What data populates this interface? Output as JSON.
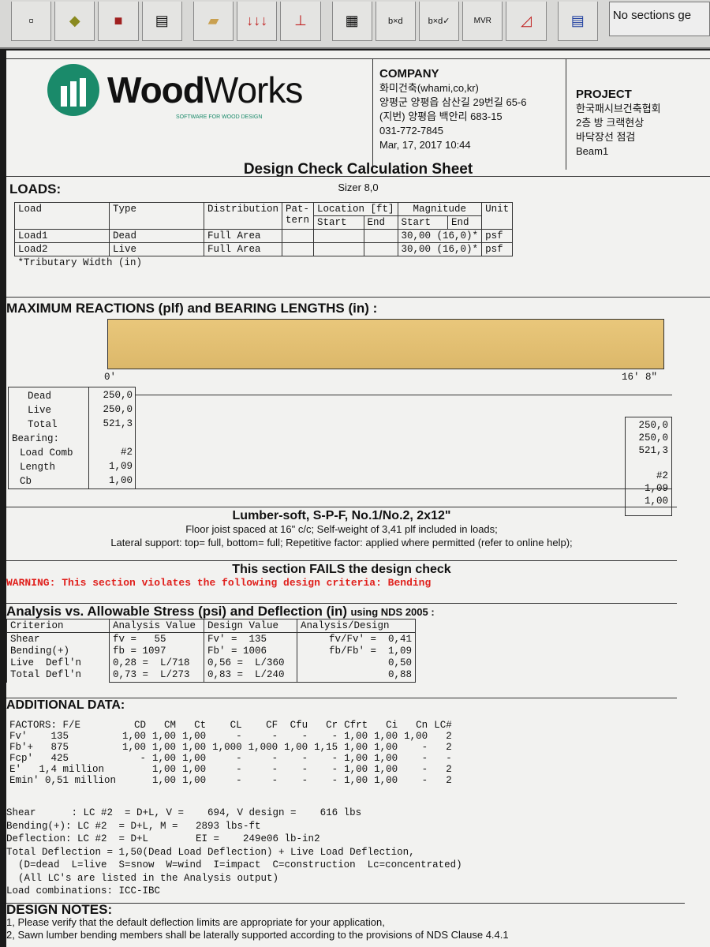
{
  "toolbar": {
    "icons": [
      "new-icon",
      "open-icon",
      "save-icon",
      "print-icon",
      "beam-icon",
      "loads-icon",
      "support-icon",
      "calculator-icon",
      "design-report-icon",
      "design-check-icon",
      "mvr-diagram-icon",
      "deflection-diagram-icon",
      "form-icon"
    ],
    "status": "No sections ge"
  },
  "header": {
    "logo": "WoodWorks",
    "logo_sub": "SOFTWARE FOR WOOD DESIGN",
    "company": {
      "label": "COMPANY",
      "lines": [
        "화미건축(whami,co,kr)",
        "양평군 양평읍 삼산길 29번길 65-6",
        "(지번) 양평읍 백안리 683-15",
        "031-772-7845",
        "Mar, 17, 2017 10:44"
      ]
    },
    "project": {
      "label": "PROJECT",
      "lines": [
        "한국패시브건축협회",
        "2층 방 크랙현상",
        "바닥장선 점검",
        "Beam1"
      ]
    },
    "title": "Design Check Calculation Sheet",
    "sizer": "Sizer 8,0"
  },
  "loads": {
    "heading": "LOADS:",
    "headers": [
      "Load",
      "Type",
      "Distribution",
      "Pat-tern",
      "Location [ft]",
      "Start",
      "End",
      "Magnitude",
      "Start",
      "End",
      "Unit"
    ],
    "rows": [
      {
        "load": "Load1",
        "type": "Dead",
        "dist": "Full Area",
        "mag": "30,00 (16,0)*",
        "unit": "psf"
      },
      {
        "load": "Load2",
        "type": "Live",
        "dist": "Full Area",
        "mag": "30,00 (16,0)*",
        "unit": "psf"
      }
    ],
    "footnote": "*Tributary Width (in)"
  },
  "reactions": {
    "heading": "MAXIMUM REACTIONS (plf) and BEARING LENGTHS (in) :",
    "left_label": "0'",
    "right_label": "16' 8\"",
    "labels": [
      "Dead",
      "Live",
      "Total",
      "Bearing:",
      "Load Comb",
      "Length",
      "Cb"
    ],
    "left": {
      "dead": "250,0",
      "live": "250,0",
      "total": "521,3",
      "comb": "#2",
      "length": "1,09",
      "cb": "1,00"
    },
    "right": {
      "dead": "250,0",
      "live": "250,0",
      "total": "521,3",
      "comb": "#2",
      "length": "1,09",
      "cb": "1,00"
    }
  },
  "lumber": {
    "title": "Lumber-soft, S-P-F, No.1/No.2, 2x12\"",
    "line1": "Floor joist spaced at 16\" c/c; Self-weight of 3,41 plf included in loads;",
    "line2": "Lateral support: top= full, bottom= full; Repetitive factor: applied where permitted (refer to online help);"
  },
  "status": {
    "fail": "This section FAILS the design check",
    "warning": "WARNING: This section violates the following design criteria: Bending",
    "warning_color": "#e0201c"
  },
  "analysis": {
    "heading": "Analysis vs. Allowable Stress (psi) and Deflection (in)",
    "using": "using NDS 2005 :",
    "headers": [
      "Criterion",
      "Analysis Value",
      "Design  Value",
      "Analysis/Design"
    ],
    "rows": [
      [
        "Shear",
        "fv =   55",
        "Fv' =  135",
        "fv/Fv' =  0,41"
      ],
      [
        "Bending(+)",
        "fb = 1097",
        "Fb' = 1006",
        "fb/Fb' =  1,09"
      ],
      [
        "Live  Defl'n",
        "0,28 =  L/718",
        "0,56 =  L/360",
        "0,50"
      ],
      [
        "Total Defl'n",
        "0,73 =  L/273",
        "0,83 =  L/240",
        "0,88"
      ]
    ]
  },
  "additional": {
    "heading": "ADDITIONAL DATA:",
    "headers": [
      "FACTORS: F/E",
      "CD",
      "CM",
      "Ct",
      "CL",
      "CF",
      "Cfu",
      "Cr",
      "Cfrt",
      "Ci",
      "Cn",
      "LC#"
    ],
    "rows": [
      [
        "Fv'    135",
        "1,00",
        "1,00",
        "1,00",
        "-",
        "-",
        "-",
        "-",
        "1,00",
        "1,00",
        "1,00",
        "2"
      ],
      [
        "Fb'+   875",
        "1,00",
        "1,00",
        "1,00",
        "1,000",
        "1,000",
        "1,00",
        "1,15",
        "1,00",
        "1,00",
        "-",
        "2"
      ],
      [
        "Fcp'   425",
        "-",
        "1,00",
        "1,00",
        "-",
        "-",
        "-",
        "-",
        "1,00",
        "1,00",
        "-",
        "-"
      ],
      [
        "E'   1,4 million",
        "",
        "1,00",
        "1,00",
        "-",
        "-",
        "-",
        "-",
        "1,00",
        "1,00",
        "-",
        "2"
      ],
      [
        "Emin' 0,51 million",
        "",
        "1,00",
        "1,00",
        "-",
        "-",
        "-",
        "-",
        "1,00",
        "1,00",
        "-",
        "2"
      ]
    ],
    "lines": [
      "Shear      : LC #2  = D+L, V =    694, V design =    616 lbs",
      "Bending(+): LC #2  = D+L, M =   2893 lbs-ft",
      "Deflection: LC #2  = D+L        EI =    249e06 lb-in2",
      "Total Deflection = 1,50(Dead Load Deflection) + Live Load Deflection,",
      "  (D=dead  L=live  S=snow  W=wind  I=impact  C=construction  Lc=concentrated)",
      "  (All LC's are listed in the Analysis output)",
      "Load combinations: ICC-IBC"
    ]
  },
  "notes": {
    "heading": "DESIGN NOTES:",
    "items": [
      "1, Please verify that the default deflection limits are appropriate for your application,",
      "2, Sawn lumber bending members shall be laterally supported according to the provisions of NDS Clause 4.4.1"
    ]
  }
}
